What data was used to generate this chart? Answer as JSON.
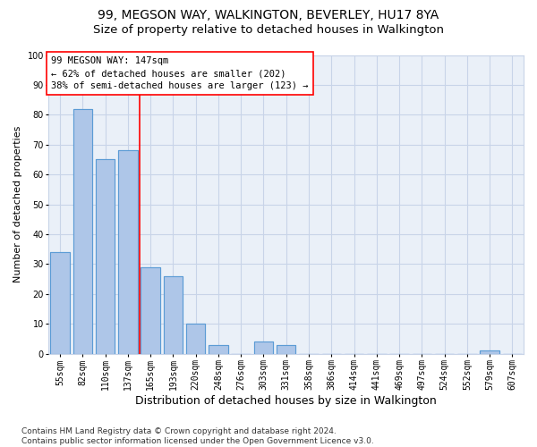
{
  "title1": "99, MEGSON WAY, WALKINGTON, BEVERLEY, HU17 8YA",
  "title2": "Size of property relative to detached houses in Walkington",
  "xlabel": "Distribution of detached houses by size in Walkington",
  "ylabel": "Number of detached properties",
  "categories": [
    "55sqm",
    "82sqm",
    "110sqm",
    "137sqm",
    "165sqm",
    "193sqm",
    "220sqm",
    "248sqm",
    "276sqm",
    "303sqm",
    "331sqm",
    "358sqm",
    "386sqm",
    "414sqm",
    "441sqm",
    "469sqm",
    "497sqm",
    "524sqm",
    "552sqm",
    "579sqm",
    "607sqm"
  ],
  "values": [
    34,
    82,
    65,
    68,
    29,
    26,
    10,
    3,
    0,
    4,
    3,
    0,
    0,
    0,
    0,
    0,
    0,
    0,
    0,
    1,
    0
  ],
  "bar_color": "#aec6e8",
  "bar_edge_color": "#5b9bd5",
  "grid_color": "#c8d4e8",
  "background_color": "#eaf0f8",
  "vline_x": 3.5,
  "vline_color": "red",
  "annotation_text": "99 MEGSON WAY: 147sqm\n← 62% of detached houses are smaller (202)\n38% of semi-detached houses are larger (123) →",
  "annotation_box_color": "white",
  "annotation_box_edge": "red",
  "ylim": [
    0,
    100
  ],
  "yticks": [
    0,
    10,
    20,
    30,
    40,
    50,
    60,
    70,
    80,
    90,
    100
  ],
  "footnote": "Contains HM Land Registry data © Crown copyright and database right 2024.\nContains public sector information licensed under the Open Government Licence v3.0.",
  "title_fontsize": 10,
  "subtitle_fontsize": 9.5,
  "xlabel_fontsize": 9,
  "ylabel_fontsize": 8,
  "tick_fontsize": 7,
  "annot_fontsize": 7.5,
  "footnote_fontsize": 6.5
}
